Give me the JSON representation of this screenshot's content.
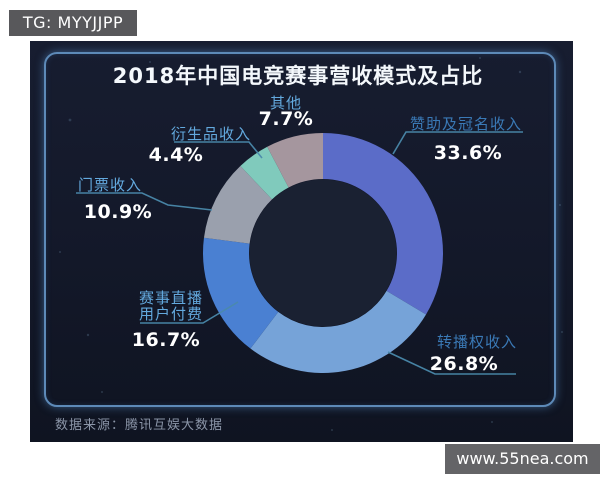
{
  "badges": {
    "tg_badge_text": "TG: MYYJJPP",
    "watermark_text": "www.55nea.com"
  },
  "chart": {
    "title": "2018年中国电竞赛事营收模式及占比",
    "source": "数据来源：腾讯互娱大数据"
  },
  "theme": {
    "page_bg": "#ffffff",
    "dark_bg": "#131829",
    "panel_border": "#5d8ab8",
    "label_blue_light": "#63a9de",
    "label_blue_dark": "#3a79b6",
    "percent_color": "#ffffff",
    "leader_line_color": "#4a89ab",
    "source_color": "#8b95a8",
    "badge_bg": "#58585b",
    "donut_hole": "#1a2132"
  },
  "chart_data": {
    "type": "pie",
    "donut": true,
    "title": "2018年中国电竞赛事营收模式及占比",
    "unit": "%",
    "start_angle": "12-o'clock, clockwise",
    "segments": [
      {
        "label": "赞助及冠名收入",
        "value": 33.6,
        "display": "33.6%",
        "color": "#5b6cc8"
      },
      {
        "label": "转播权收入",
        "value": 26.8,
        "display": "26.8%",
        "color": "#76a3d8"
      },
      {
        "label": "赛事直播用户付费",
        "value": 16.7,
        "display": "16.7%",
        "color": "#4a80d2"
      },
      {
        "label": "门票收入",
        "value": 10.9,
        "display": "10.9%",
        "color": "#9aa0ad"
      },
      {
        "label": "衍生品收入",
        "value": 4.4,
        "display": "4.4%",
        "color": "#80cabc"
      },
      {
        "label": "其他",
        "value": 7.7,
        "display": "7.7%",
        "color": "#a5969e"
      }
    ]
  }
}
